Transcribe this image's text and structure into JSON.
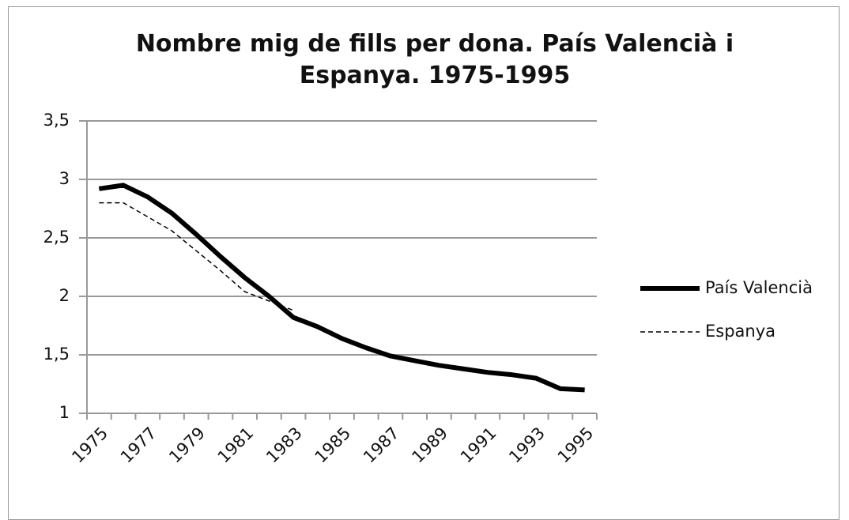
{
  "chart_data": {
    "type": "line",
    "title": "Nombre mig de fills per dona. País Valencià i Espanya. 1975-1995",
    "categories": [
      "1975",
      null,
      "1977",
      null,
      "1979",
      null,
      "1981",
      null,
      "1983",
      null,
      "1985",
      null,
      "1987",
      null,
      "1989",
      null,
      "1991",
      null,
      "1993",
      null,
      "1995"
    ],
    "series": [
      {
        "name": "País Valencià",
        "color": "#000000",
        "dash": false,
        "values": [
          2.92,
          2.95,
          2.85,
          2.71,
          2.53,
          2.34,
          2.16,
          2.0,
          1.82,
          1.74,
          1.64,
          1.56,
          1.49,
          1.45,
          1.41,
          1.38,
          1.35,
          1.33,
          1.3,
          1.21,
          1.2
        ]
      },
      {
        "name": "Espanya",
        "color": "#000000",
        "dash": true,
        "values": [
          2.8,
          2.8,
          2.68,
          2.56,
          2.39,
          2.22,
          2.04,
          1.96,
          1.88,
          null,
          null,
          null,
          null,
          null,
          null,
          null,
          null,
          null,
          null,
          null,
          null
        ]
      }
    ],
    "ylim": [
      1,
      3.5
    ],
    "yticks": [
      1,
      {
        "value": 1.5,
        "label": "1,5"
      },
      2,
      {
        "value": 2.5,
        "label": "2,5"
      },
      3,
      {
        "value": 3.5,
        "label": "3,5"
      }
    ],
    "grid": true,
    "legend": "right"
  }
}
